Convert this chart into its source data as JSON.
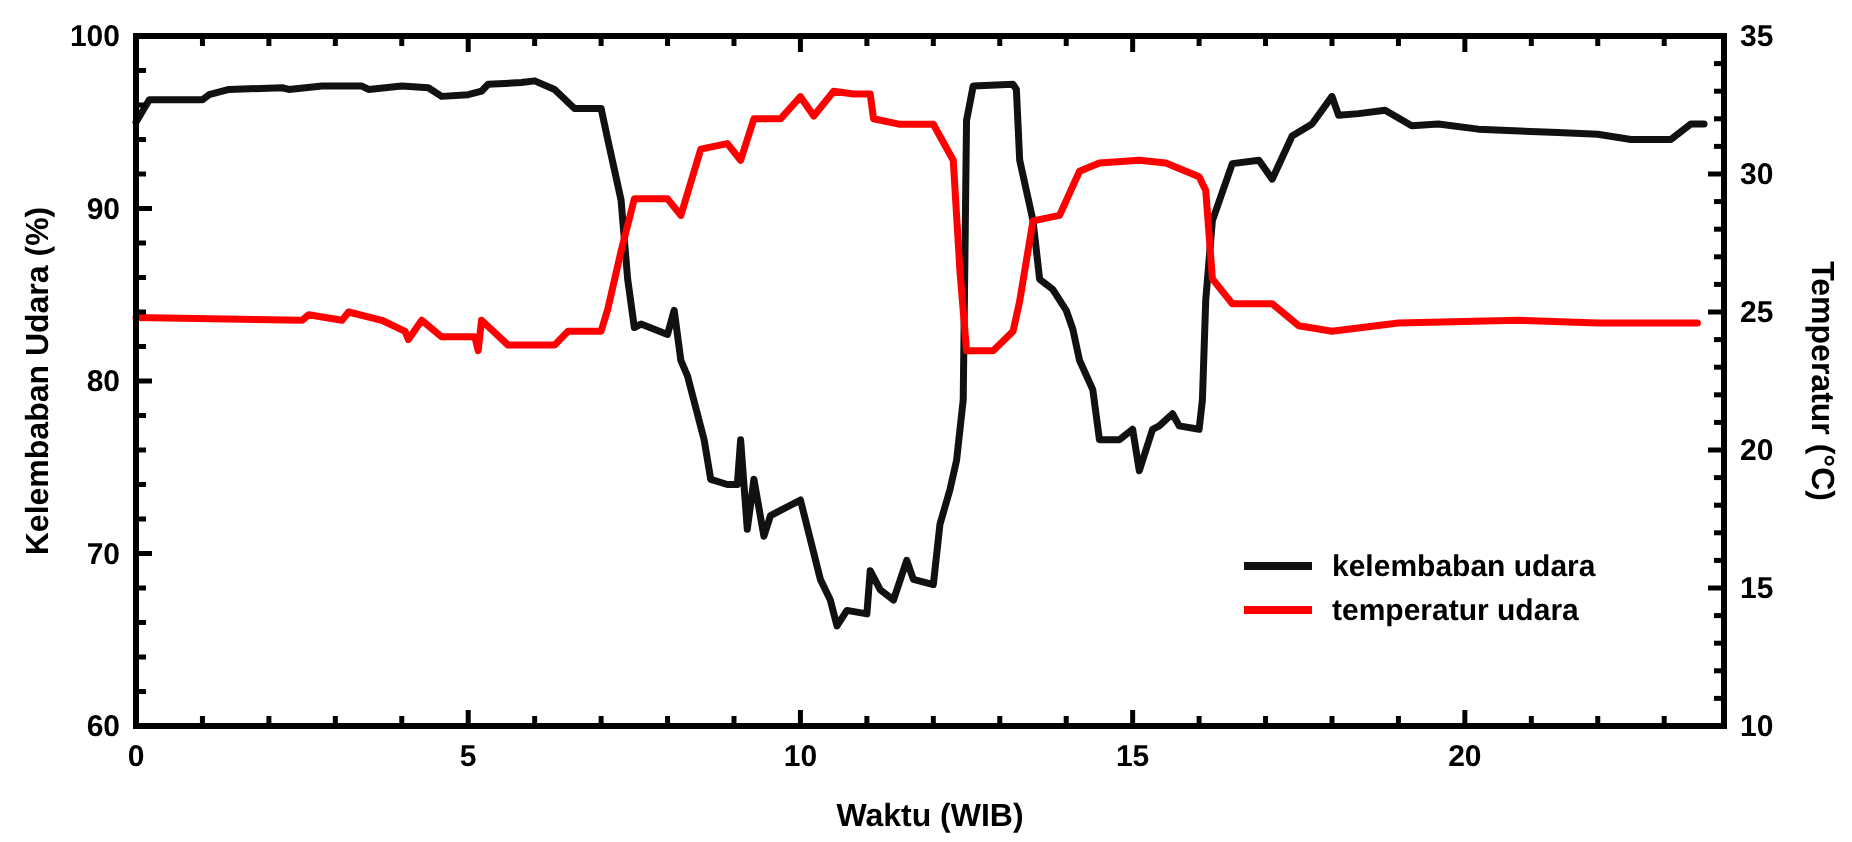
{
  "chart_data": {
    "type": "line",
    "xlabel": "Waktu  (WIB)",
    "ylabel": "Kelembaban Udara  (%)",
    "y2label": "Temperatur  (°C)",
    "xlim": [
      0,
      23.9
    ],
    "ylim": [
      60,
      100
    ],
    "y2lim": [
      10,
      35
    ],
    "xticks": [
      0,
      {
        "value": 1,
        "label": null
      },
      {
        "value": 2,
        "label": null
      },
      {
        "value": 3,
        "label": null
      },
      {
        "value": 4,
        "label": null
      },
      5,
      {
        "value": 6,
        "label": null
      },
      {
        "value": 7,
        "label": null
      },
      {
        "value": 8,
        "label": null
      },
      {
        "value": 9,
        "label": null
      },
      10,
      {
        "value": 11,
        "label": null
      },
      {
        "value": 12,
        "label": null
      },
      {
        "value": 13,
        "label": null
      },
      {
        "value": 14,
        "label": null
      },
      15,
      {
        "value": 16,
        "label": null
      },
      {
        "value": 17,
        "label": null
      },
      {
        "value": 18,
        "label": null
      },
      {
        "value": 19,
        "label": null
      },
      20,
      {
        "value": 21,
        "label": null
      },
      {
        "value": 22,
        "label": null
      },
      {
        "value": 23,
        "label": null
      }
    ],
    "yticks": [
      60,
      {
        "value": 62,
        "label": null
      },
      {
        "value": 64,
        "label": null
      },
      {
        "value": 66,
        "label": null
      },
      {
        "value": 68,
        "label": null
      },
      70,
      {
        "value": 72,
        "label": null
      },
      {
        "value": 74,
        "label": null
      },
      {
        "value": 76,
        "label": null
      },
      {
        "value": 78,
        "label": null
      },
      80,
      {
        "value": 82,
        "label": null
      },
      {
        "value": 84,
        "label": null
      },
      {
        "value": 86,
        "label": null
      },
      {
        "value": 88,
        "label": null
      },
      90,
      {
        "value": 92,
        "label": null
      },
      {
        "value": 94,
        "label": null
      },
      {
        "value": 96,
        "label": null
      },
      {
        "value": 98,
        "label": null
      },
      100
    ],
    "y2ticks": [
      10,
      {
        "value": 11,
        "label": null
      },
      {
        "value": 12,
        "label": null
      },
      {
        "value": 13,
        "label": null
      },
      {
        "value": 14,
        "label": null
      },
      15,
      {
        "value": 16,
        "label": null
      },
      {
        "value": 17,
        "label": null
      },
      {
        "value": 18,
        "label": null
      },
      {
        "value": 19,
        "label": null
      },
      20,
      {
        "value": 21,
        "label": null
      },
      {
        "value": 22,
        "label": null
      },
      {
        "value": 23,
        "label": null
      },
      {
        "value": 24,
        "label": null
      },
      25,
      {
        "value": 26,
        "label": null
      },
      {
        "value": 27,
        "label": null
      },
      {
        "value": 28,
        "label": null
      },
      {
        "value": 29,
        "label": null
      },
      30,
      {
        "value": 31,
        "label": null
      },
      {
        "value": 32,
        "label": null
      },
      {
        "value": 33,
        "label": null
      },
      {
        "value": 34,
        "label": null
      },
      35
    ],
    "legend": "bottom right",
    "grid": false,
    "line_style": "solid",
    "series": [
      {
        "name": "kelembaban udara",
        "color": "#111111",
        "x": [
          0,
          0.2,
          1.0,
          1.1,
          1.4,
          2.2,
          2.3,
          2.8,
          3.4,
          3.5,
          4.0,
          4.4,
          4.6,
          5.0,
          5.2,
          5.3,
          5.8,
          6.0,
          6.3,
          6.6,
          7.0,
          7.1,
          7.3,
          7.4,
          7.5,
          7.6,
          8.0,
          8.1,
          8.2,
          8.3,
          8.55,
          8.65,
          8.9,
          9.05,
          9.1,
          9.2,
          9.3,
          9.45,
          9.55,
          10.0,
          10.15,
          10.3,
          10.45,
          10.55,
          10.7,
          11.0,
          11.05,
          11.2,
          11.4,
          11.6,
          11.7,
          12.0,
          12.1,
          12.25,
          12.35,
          12.45,
          12.5,
          12.6,
          13.2,
          13.25,
          13.3,
          13.5,
          13.6,
          13.8,
          14.0,
          14.1,
          14.2,
          14.4,
          14.5,
          14.8,
          15.0,
          15.1,
          15.3,
          15.4,
          15.6,
          15.7,
          16.0,
          16.05,
          16.1,
          16.2,
          16.5,
          16.9,
          17.1,
          17.4,
          17.7,
          18.0,
          18.1,
          18.4,
          18.8,
          19.2,
          19.6,
          20.2,
          21.4,
          22.0,
          22.5,
          23.1,
          23.4,
          23.6
        ],
        "values": [
          95,
          96.3,
          96.3,
          96.6,
          96.9,
          97.0,
          96.9,
          97.1,
          97.1,
          96.9,
          97.1,
          97.0,
          96.5,
          96.6,
          96.8,
          97.2,
          97.3,
          97.4,
          96.9,
          95.8,
          95.8,
          94.0,
          90.5,
          85.9,
          83.1,
          83.3,
          82.7,
          84.1,
          81.2,
          80.3,
          76.6,
          74.3,
          74.0,
          74.0,
          76.6,
          71.4,
          74.3,
          71.0,
          72.2,
          73.1,
          70.8,
          68.5,
          67.3,
          65.8,
          66.7,
          66.5,
          69.0,
          67.9,
          67.3,
          69.6,
          68.5,
          68.2,
          71.7,
          73.7,
          75.4,
          78.9,
          95.1,
          97.1,
          97.2,
          96.9,
          92.8,
          89.3,
          85.9,
          85.3,
          84.1,
          83.0,
          81.2,
          79.5,
          76.6,
          76.6,
          77.2,
          74.8,
          77.2,
          77.4,
          78.1,
          77.4,
          77.2,
          78.9,
          84.7,
          89.3,
          92.6,
          92.8,
          91.7,
          94.2,
          94.9,
          96.5,
          95.4,
          95.5,
          95.7,
          94.8,
          94.9,
          94.6,
          94.4,
          94.3,
          94.0,
          94.0,
          94.9,
          94.9
        ]
      },
      {
        "name": "temperatur udara",
        "color": "#ff0000",
        "axis": "y2",
        "x": [
          0,
          2.5,
          2.6,
          3.1,
          3.2,
          3.7,
          4.05,
          4.1,
          4.3,
          4.6,
          5.1,
          5.15,
          5.2,
          5.6,
          6.3,
          6.5,
          7.0,
          7.1,
          7.3,
          7.5,
          8.0,
          8.2,
          8.5,
          8.9,
          9.1,
          9.3,
          9.7,
          10.0,
          10.2,
          10.5,
          10.8,
          11.05,
          11.1,
          11.5,
          12.0,
          12.3,
          12.4,
          12.5,
          12.9,
          13.2,
          13.3,
          13.5,
          13.9,
          14.2,
          14.5,
          15.1,
          15.5,
          16.0,
          16.1,
          16.2,
          16.5,
          17.1,
          17.5,
          18.0,
          19.0,
          20.8,
          22.0,
          23.5
        ],
        "values": [
          24.8,
          24.7,
          24.9,
          24.7,
          25.0,
          24.7,
          24.3,
          24.0,
          24.7,
          24.1,
          24.1,
          23.6,
          24.7,
          23.8,
          23.8,
          24.3,
          24.3,
          25.1,
          27.2,
          29.1,
          29.1,
          28.5,
          30.9,
          31.1,
          30.5,
          32.0,
          32.0,
          32.8,
          32.1,
          33.0,
          32.9,
          32.9,
          32.0,
          31.8,
          31.8,
          30.5,
          26.5,
          23.6,
          23.6,
          24.3,
          25.4,
          28.3,
          28.5,
          30.1,
          30.4,
          30.5,
          30.4,
          29.9,
          29.4,
          26.2,
          25.3,
          25.3,
          24.5,
          24.3,
          24.6,
          24.7,
          24.6,
          24.6
        ]
      }
    ]
  }
}
